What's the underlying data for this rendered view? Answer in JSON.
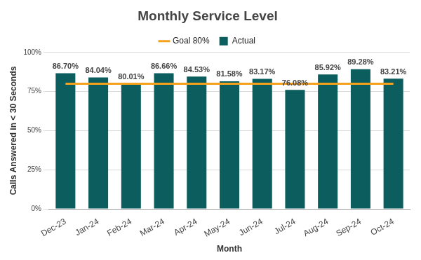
{
  "chart_data": {
    "type": "bar",
    "title": "Monthly Service Level",
    "xlabel": "Month",
    "ylabel": "Calls Answered in < 30 Seconds",
    "categories": [
      "Dec-23",
      "Jan-24",
      "Feb-24",
      "Mar-24",
      "Apr-24",
      "May-24",
      "Jun-24",
      "Jul-24",
      "Aug-24",
      "Sep-24",
      "Oct-24"
    ],
    "series": [
      {
        "name": "Actual",
        "type": "bar",
        "color": "#0b5e5d",
        "values": [
          86.7,
          84.04,
          80.01,
          86.66,
          84.53,
          81.58,
          83.17,
          76.08,
          85.92,
          89.28,
          83.21
        ],
        "data_labels": true,
        "value_labels": [
          "86.70%",
          "84.04%",
          "80.01%",
          "86.66%",
          "84.53%",
          "81.58%",
          "83.17%",
          "76.08%",
          "85.92%",
          "89.28%",
          "83.21%"
        ]
      },
      {
        "name": "Goal 80%",
        "type": "line",
        "color": "#f5a11c",
        "values": [
          80,
          80,
          80,
          80,
          80,
          80,
          80,
          80,
          80,
          80,
          80
        ]
      }
    ],
    "ylim": [
      0,
      100
    ],
    "yticks": [
      {
        "value": 0,
        "label": "0%"
      },
      {
        "value": 25,
        "label": "25%"
      },
      {
        "value": 50,
        "label": "50%"
      },
      {
        "value": 75,
        "label": "75%"
      },
      {
        "value": 100,
        "label": "100%"
      }
    ],
    "grid": true,
    "legend": "top"
  }
}
